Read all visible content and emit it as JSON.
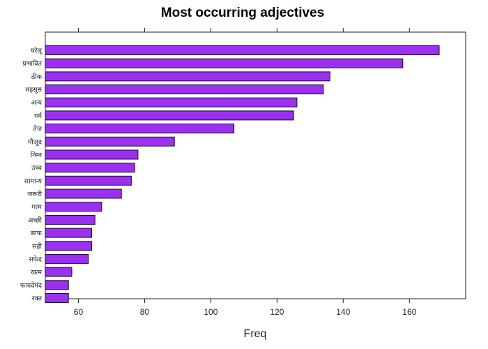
{
  "chart_data": {
    "type": "bar",
    "orientation": "horizontal",
    "title": "Most occurring adjectives",
    "xlabel": "Freq",
    "ylabel": "",
    "xlim": [
      50,
      177
    ],
    "x_ticks": [
      60,
      80,
      100,
      120,
      140,
      160
    ],
    "grid": false,
    "bar_color": "#9B30F0",
    "categories": [
      "घरेलू",
      "प्रभावित",
      "ठीक",
      "महसूस",
      "अन्य",
      "गर्म",
      "तेज",
      "मौजूद",
      "निम्न",
      "उच्च",
      "सामान्य",
      "जरूरी",
      "गरम",
      "अच्छी",
      "साफ",
      "सही",
      "सफेद",
      "खत्म",
      "फायदेमंद",
      "रक्त"
    ],
    "values": [
      169,
      158,
      136,
      134,
      126,
      125,
      107,
      89,
      78,
      77,
      76,
      73,
      67,
      65,
      64,
      64,
      63,
      58,
      57,
      57
    ]
  }
}
